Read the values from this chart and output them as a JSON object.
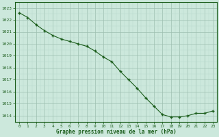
{
  "x": [
    0,
    1,
    2,
    3,
    4,
    5,
    6,
    7,
    8,
    9,
    10,
    11,
    12,
    13,
    14,
    15,
    16,
    17,
    18,
    19,
    20,
    21,
    22,
    23
  ],
  "y": [
    1022.6,
    1022.2,
    1021.6,
    1021.1,
    1020.7,
    1020.4,
    1020.2,
    1020.0,
    1019.8,
    1019.4,
    1018.9,
    1018.5,
    1017.7,
    1017.0,
    1016.3,
    1015.5,
    1014.8,
    1014.1,
    1013.9,
    1013.9,
    1014.0,
    1014.2,
    1014.2,
    1014.4
  ],
  "ylim": [
    1013.5,
    1023.5
  ],
  "yticks": [
    1014,
    1015,
    1016,
    1017,
    1018,
    1019,
    1020,
    1021,
    1022,
    1023
  ],
  "xticks": [
    0,
    1,
    2,
    3,
    4,
    5,
    6,
    7,
    8,
    9,
    10,
    11,
    12,
    13,
    14,
    15,
    16,
    17,
    18,
    19,
    20,
    21,
    22,
    23
  ],
  "xlabel": "Graphe pression niveau de la mer (hPa)",
  "line_color": "#1a5c1a",
  "marker": "+",
  "marker_size": 3.5,
  "bg_color": "#cce8dc",
  "grid_color_major": "#9dbfb0",
  "grid_color_minor": "#b8d8cc",
  "axis_color": "#1a5c1a",
  "tick_label_color": "#1a5c1a",
  "xlabel_color": "#1a5c1a",
  "line_width": 0.8
}
